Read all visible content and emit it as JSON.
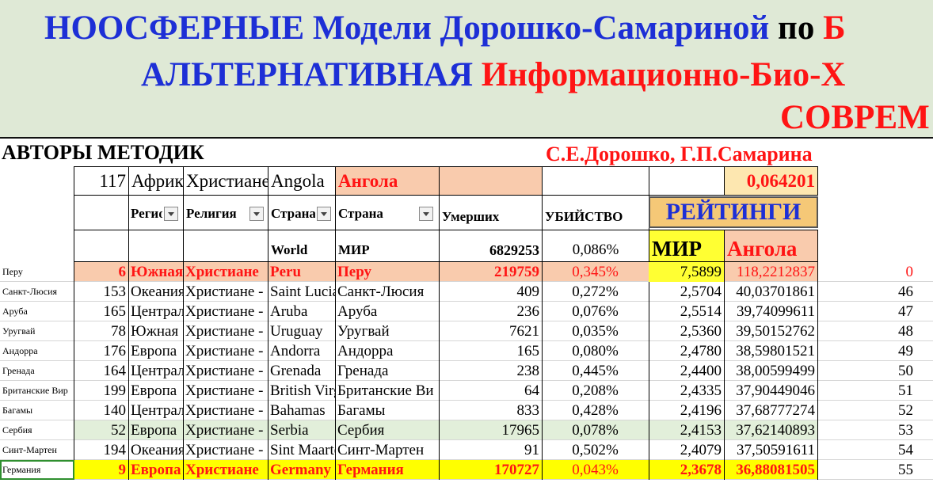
{
  "banner": {
    "line1_blue_a": "НООСФЕРНЫЕ Модели Дорошко-Самариной",
    "line1_black": "по",
    "line1_red": "Б",
    "line2_blue": "АЛЬТЕРНАТИВНАЯ",
    "line2_red": "Информационно-Био-Х",
    "line3_red": "СОВРЕМ"
  },
  "authors_label": "АВТОРЫ МЕТОДИК",
  "authors_names": "С.Е.Дорошко, Г.П.Самарина",
  "filter_row": {
    "num": "117",
    "region": "Африка",
    "religion": "Христиане",
    "country_en": "Angola",
    "country_ru": "Ангола",
    "value": "0,064201"
  },
  "headers": {
    "region": "Регион",
    "religion": "Религия",
    "country_en": "Страна",
    "country_ru": "Страна",
    "deaths": "Умерших",
    "murder": "УБИЙСТВО",
    "ratings": "РЕЙТИНГИ"
  },
  "world_row": {
    "en": "World",
    "ru": "МИР",
    "deaths": "6829253",
    "percent": "0,086%",
    "world_label": "МИР",
    "country_label": "Ангола"
  },
  "rows": [
    {
      "side": "Перу",
      "num": "6",
      "region": "Южная",
      "religion": "Христиане",
      "en": "Peru",
      "ru": "Перу",
      "deaths": "219759",
      "pct": "0,345%",
      "rating_world": "7,5899",
      "rating_country": "118,2212837",
      "rank": "0",
      "style": "peach"
    },
    {
      "side": "Санкт-Люсия",
      "num": "153",
      "region": "Океания",
      "religion": "Христиане -",
      "en": "Saint Lucia",
      "ru": "Санкт-Люсия",
      "deaths": "409",
      "pct": "0,272%",
      "rating_world": "2,5704",
      "rating_country": "40,03701861",
      "rank": "46",
      "style": ""
    },
    {
      "side": "Аруба",
      "num": "165",
      "region": "Центральная",
      "religion": "Христиане -",
      "en": "Aruba",
      "ru": "Аруба",
      "deaths": "236",
      "pct": "0,076%",
      "rating_world": "2,5514",
      "rating_country": "39,74099611",
      "rank": "47",
      "style": ""
    },
    {
      "side": "Уругвай",
      "num": "78",
      "region": "Южная",
      "religion": "Христиане -",
      "en": "Uruguay",
      "ru": "Уругвай",
      "deaths": "7621",
      "pct": "0,035%",
      "rating_world": "2,5360",
      "rating_country": "39,50152762",
      "rank": "48",
      "style": ""
    },
    {
      "side": "Андорра",
      "num": "176",
      "region": "Европа",
      "religion": "Христиане -",
      "en": "Andorra",
      "ru": "Андорра",
      "deaths": "165",
      "pct": "0,080%",
      "rating_world": "2,4780",
      "rating_country": "38,59801521",
      "rank": "49",
      "style": ""
    },
    {
      "side": "Гренада",
      "num": "164",
      "region": "Центральная",
      "religion": "Христиане -",
      "en": "Grenada",
      "ru": "Гренада",
      "deaths": "238",
      "pct": "0,445%",
      "rating_world": "2,4400",
      "rating_country": "38,00599499",
      "rank": "50",
      "style": ""
    },
    {
      "side": "Британские Вир",
      "num": "199",
      "region": "Европа",
      "religion": "Христиане -",
      "en": "British Virgin",
      "ru": "Британские Ви",
      "deaths": "64",
      "pct": "0,208%",
      "rating_world": "2,4335",
      "rating_country": "37,90449046",
      "rank": "51",
      "style": ""
    },
    {
      "side": "Багамы",
      "num": "140",
      "region": "Центральная",
      "religion": "Христиане -",
      "en": "Bahamas",
      "ru": "Багамы",
      "deaths": "833",
      "pct": "0,428%",
      "rating_world": "2,4196",
      "rating_country": "37,68777274",
      "rank": "52",
      "style": ""
    },
    {
      "side": "Сербия",
      "num": "52",
      "region": "Европа",
      "religion": "Христиане -",
      "en": "Serbia",
      "ru": "Сербия",
      "deaths": "17965",
      "pct": "0,078%",
      "rating_world": "2,4153",
      "rating_country": "37,62140893",
      "rank": "53",
      "style": "green"
    },
    {
      "side": "Синт-Мартен",
      "num": "194",
      "region": "Океания",
      "religion": "Христиане -",
      "en": "Sint Maarten",
      "ru": "Синт-Мартен",
      "deaths": "91",
      "pct": "0,502%",
      "rating_world": "2,4079",
      "rating_country": "37,50591611",
      "rank": "54",
      "style": ""
    },
    {
      "side": "Германия",
      "num": "9",
      "region": "Европа",
      "religion": "Христиане",
      "en": "Germany",
      "ru": "Германия",
      "deaths": "170727",
      "pct": "0,043%",
      "rating_world": "2,3678",
      "rating_country": "36,88081505",
      "rank": "55",
      "style": "yellow"
    }
  ],
  "colors": {
    "banner_bg": "#dfe9d6",
    "navy": "#1d2fd6",
    "red": "#ff1414",
    "peach": "#f9cbad",
    "yellow": "#ffff00",
    "light_green": "#e2efda",
    "gold": "#ffff33",
    "ratings_bg": "#f5c877",
    "value_bg": "#fde7b0"
  },
  "icons": {
    "filter": "filter-dropdown-icon"
  }
}
